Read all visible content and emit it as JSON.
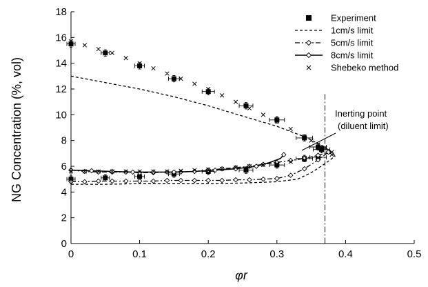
{
  "chart_data": {
    "type": "scatter",
    "title": "",
    "xlabel": "φr",
    "ylabel": "NG Concentration (%, vol)",
    "xlim": [
      0,
      0.5
    ],
    "ylim": [
      0,
      18
    ],
    "x_ticks": [
      "0",
      "0.1",
      "0.2",
      "0.3",
      "0.4",
      "0.5"
    ],
    "y_ticks": [
      "0",
      "2",
      "4",
      "6",
      "8",
      "10",
      "12",
      "14",
      "16",
      "18"
    ],
    "grid": false,
    "legend_position": "top-right",
    "legend": [
      {
        "label": "Experiment",
        "marker": "filled-square"
      },
      {
        "label": "1cm/s limit",
        "line": "short-dash"
      },
      {
        "label": "5cm/s limit",
        "line": "dash-dot",
        "marker": "open-diamond"
      },
      {
        "label": "8cm/s limit",
        "line": "solid",
        "marker": "open-diamond"
      },
      {
        "label": "Shebeko method",
        "marker": "x"
      }
    ],
    "annotation": {
      "line1": "Inerting point",
      "line2": "(diluent limit)",
      "x": 0.37
    },
    "series": [
      {
        "name": "Experiment",
        "kind": "points",
        "upper": [
          {
            "x": 0,
            "y": 15.5,
            "xerr": 0.006,
            "yerr": 0.25
          },
          {
            "x": 0.05,
            "y": 14.8,
            "xerr": 0.006,
            "yerr": 0.25
          },
          {
            "x": 0.1,
            "y": 13.8,
            "xerr": 0.007,
            "yerr": 0.25
          },
          {
            "x": 0.15,
            "y": 12.8,
            "xerr": 0.008,
            "yerr": 0.25
          },
          {
            "x": 0.2,
            "y": 11.8,
            "xerr": 0.009,
            "yerr": 0.25
          },
          {
            "x": 0.255,
            "y": 10.7,
            "xerr": 0.01,
            "yerr": 0.25
          },
          {
            "x": 0.3,
            "y": 9.6,
            "xerr": 0.011,
            "yerr": 0.25
          },
          {
            "x": 0.34,
            "y": 8.2,
            "xerr": 0.012,
            "yerr": 0.25
          },
          {
            "x": 0.36,
            "y": 7.5,
            "xerr": 0.012,
            "yerr": 0.25
          },
          {
            "x": 0.365,
            "y": 7.3,
            "xerr": 0.012,
            "yerr": 0.25
          }
        ],
        "lower": [
          {
            "x": 0,
            "y": 5.0,
            "xerr": 0.006,
            "yerr": 0.25
          },
          {
            "x": 0.05,
            "y": 5.1,
            "xerr": 0.006,
            "yerr": 0.25
          },
          {
            "x": 0.1,
            "y": 5.2,
            "xerr": 0.007,
            "yerr": 0.25
          },
          {
            "x": 0.15,
            "y": 5.4,
            "xerr": 0.008,
            "yerr": 0.25
          },
          {
            "x": 0.2,
            "y": 5.6,
            "xerr": 0.009,
            "yerr": 0.25
          },
          {
            "x": 0.255,
            "y": 5.7,
            "xerr": 0.01,
            "yerr": 0.25
          },
          {
            "x": 0.3,
            "y": 6.1,
            "xerr": 0.011,
            "yerr": 0.25
          },
          {
            "x": 0.34,
            "y": 6.6,
            "xerr": 0.012,
            "yerr": 0.25
          },
          {
            "x": 0.36,
            "y": 6.7,
            "xerr": 0.012,
            "yerr": 0.25
          }
        ]
      },
      {
        "name": "1cm/s limit",
        "kind": "line",
        "style": "short-dash",
        "upper": [
          [
            0,
            13.0
          ],
          [
            0.05,
            12.5
          ],
          [
            0.1,
            12.0
          ],
          [
            0.15,
            11.4
          ],
          [
            0.2,
            10.7
          ],
          [
            0.25,
            9.9
          ],
          [
            0.3,
            9.1
          ],
          [
            0.34,
            8.3
          ],
          [
            0.37,
            7.5
          ],
          [
            0.385,
            6.8
          ]
        ],
        "lower": [
          [
            0,
            4.6
          ],
          [
            0.05,
            4.6
          ],
          [
            0.1,
            4.65
          ],
          [
            0.15,
            4.65
          ],
          [
            0.2,
            4.65
          ],
          [
            0.25,
            4.7
          ],
          [
            0.3,
            4.8
          ],
          [
            0.33,
            5.0
          ],
          [
            0.35,
            5.5
          ],
          [
            0.37,
            6.2
          ],
          [
            0.385,
            6.8
          ]
        ]
      },
      {
        "name": "5cm/s limit",
        "kind": "line",
        "style": "dash-dot",
        "upper": [
          [
            0,
            5.7
          ],
          [
            0.02,
            5.6
          ],
          [
            0.04,
            5.55
          ],
          [
            0.06,
            5.55
          ],
          [
            0.08,
            5.55
          ],
          [
            0.1,
            5.5
          ],
          [
            0.12,
            5.5
          ],
          [
            0.14,
            5.55
          ],
          [
            0.16,
            5.55
          ],
          [
            0.18,
            5.6
          ],
          [
            0.2,
            5.7
          ],
          [
            0.22,
            5.8
          ],
          [
            0.24,
            5.9
          ],
          [
            0.26,
            6.0
          ],
          [
            0.28,
            6.15
          ],
          [
            0.3,
            6.3
          ],
          [
            0.32,
            6.45
          ],
          [
            0.34,
            6.6
          ],
          [
            0.36,
            6.85
          ],
          [
            0.375,
            7.1
          ]
        ],
        "lower": [
          [
            0,
            4.8
          ],
          [
            0.02,
            4.8
          ],
          [
            0.04,
            4.85
          ],
          [
            0.06,
            4.85
          ],
          [
            0.08,
            4.85
          ],
          [
            0.1,
            4.85
          ],
          [
            0.12,
            4.85
          ],
          [
            0.14,
            4.9
          ],
          [
            0.16,
            4.9
          ],
          [
            0.18,
            4.9
          ],
          [
            0.2,
            4.9
          ],
          [
            0.22,
            4.9
          ],
          [
            0.24,
            4.95
          ],
          [
            0.26,
            4.95
          ],
          [
            0.28,
            5.0
          ],
          [
            0.3,
            5.05
          ],
          [
            0.32,
            5.3
          ],
          [
            0.34,
            5.8
          ],
          [
            0.36,
            6.5
          ],
          [
            0.375,
            7.1
          ]
        ]
      },
      {
        "name": "8cm/s limit",
        "kind": "line",
        "style": "solid",
        "markers": [
          [
            0,
            5.7
          ],
          [
            0.03,
            5.65
          ],
          [
            0.06,
            5.6
          ],
          [
            0.09,
            5.55
          ],
          [
            0.12,
            5.55
          ],
          [
            0.15,
            5.55
          ],
          [
            0.18,
            5.6
          ],
          [
            0.21,
            5.7
          ],
          [
            0.24,
            5.8
          ],
          [
            0.27,
            6.0
          ],
          [
            0.31,
            6.9
          ]
        ],
        "points": [
          [
            0,
            5.7
          ],
          [
            0.03,
            5.65
          ],
          [
            0.06,
            5.6
          ],
          [
            0.09,
            5.55
          ],
          [
            0.12,
            5.55
          ],
          [
            0.15,
            5.55
          ],
          [
            0.18,
            5.6
          ],
          [
            0.21,
            5.7
          ],
          [
            0.24,
            5.8
          ],
          [
            0.27,
            6.0
          ],
          [
            0.29,
            6.3
          ],
          [
            0.305,
            6.6
          ],
          [
            0.31,
            6.9
          ]
        ]
      },
      {
        "name": "Shebeko method",
        "kind": "x-markers",
        "upper": [
          [
            0,
            15.7
          ],
          [
            0.02,
            15.4
          ],
          [
            0.04,
            15.1
          ],
          [
            0.06,
            14.8
          ],
          [
            0.08,
            14.4
          ],
          [
            0.1,
            14.0
          ],
          [
            0.12,
            13.6
          ],
          [
            0.14,
            13.2
          ],
          [
            0.16,
            12.8
          ],
          [
            0.18,
            12.4
          ],
          [
            0.2,
            12.0
          ],
          [
            0.22,
            11.5
          ],
          [
            0.24,
            11.0
          ],
          [
            0.26,
            10.5
          ],
          [
            0.28,
            10.0
          ],
          [
            0.3,
            9.5
          ],
          [
            0.32,
            8.9
          ],
          [
            0.34,
            8.3
          ],
          [
            0.35,
            8.0
          ],
          [
            0.36,
            7.7
          ],
          [
            0.37,
            7.4
          ],
          [
            0.38,
            7.1
          ]
        ],
        "lower": [
          [
            0,
            5.6
          ],
          [
            0.02,
            5.6
          ],
          [
            0.04,
            5.6
          ],
          [
            0.06,
            5.6
          ],
          [
            0.08,
            5.6
          ],
          [
            0.1,
            5.6
          ],
          [
            0.12,
            5.6
          ],
          [
            0.14,
            5.6
          ],
          [
            0.16,
            5.65
          ],
          [
            0.18,
            5.7
          ],
          [
            0.2,
            5.75
          ],
          [
            0.22,
            5.8
          ],
          [
            0.24,
            5.9
          ],
          [
            0.26,
            6.0
          ],
          [
            0.28,
            6.1
          ],
          [
            0.3,
            6.2
          ],
          [
            0.32,
            6.35
          ],
          [
            0.34,
            6.5
          ],
          [
            0.36,
            6.65
          ],
          [
            0.38,
            6.9
          ]
        ]
      }
    ]
  }
}
